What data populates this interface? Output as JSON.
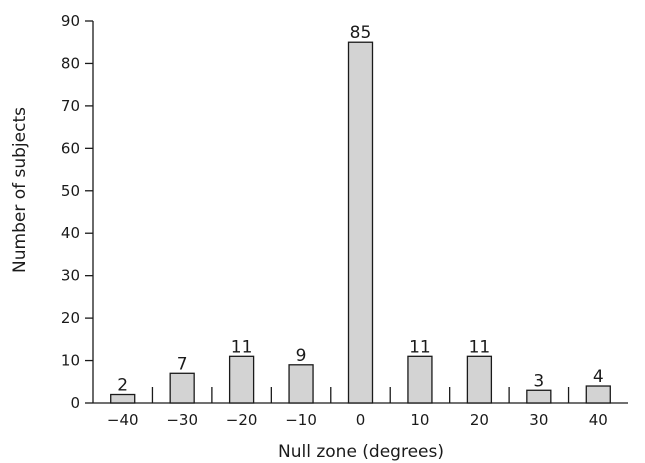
{
  "chart_data": {
    "type": "bar",
    "categories": [
      "−40",
      "−30",
      "−20",
      "−10",
      "0",
      "10",
      "20",
      "30",
      "40"
    ],
    "values": [
      2,
      7,
      11,
      9,
      85,
      11,
      11,
      3,
      4
    ],
    "data_labels": [
      "2",
      "7",
      "11",
      "9",
      "85",
      "11",
      "11",
      "3",
      "4"
    ],
    "xlabel": "Null zone (degrees)",
    "ylabel": "Number of subjects",
    "ylim": [
      0,
      90
    ],
    "yticks": [
      "0",
      "10",
      "20",
      "30",
      "40",
      "50",
      "60",
      "70",
      "80",
      "90"
    ],
    "grid": false,
    "legend": "none",
    "bar_color": "#d3d3d3",
    "outline_color": "#1a1a1a"
  }
}
